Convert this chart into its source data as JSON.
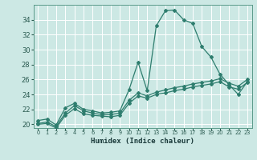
{
  "xlabel": "Humidex (Indice chaleur)",
  "x_values": [
    0,
    1,
    2,
    3,
    4,
    5,
    6,
    7,
    8,
    9,
    10,
    11,
    12,
    13,
    14,
    15,
    16,
    17,
    18,
    19,
    20,
    21,
    22,
    23
  ],
  "line1": [
    20.5,
    20.7,
    19.9,
    22.2,
    22.8,
    22.0,
    21.8,
    21.5,
    21.6,
    21.8,
    24.6,
    28.3,
    24.5,
    33.2,
    35.2,
    35.3,
    34.0,
    33.5,
    30.4,
    29.0,
    26.7,
    25.3,
    24.0,
    25.7
  ],
  "line2": [
    20.1,
    20.3,
    19.7,
    21.5,
    22.5,
    21.8,
    21.5,
    21.3,
    21.3,
    21.5,
    23.2,
    24.2,
    23.8,
    24.3,
    24.6,
    24.9,
    25.1,
    25.4,
    25.6,
    25.8,
    26.1,
    25.5,
    25.1,
    26.0
  ],
  "line3": [
    20.0,
    20.1,
    19.5,
    21.2,
    22.1,
    21.4,
    21.2,
    21.1,
    21.0,
    21.2,
    22.8,
    23.8,
    23.5,
    24.0,
    24.2,
    24.5,
    24.7,
    25.0,
    25.2,
    25.4,
    25.7,
    25.0,
    24.7,
    25.6
  ],
  "line_color": "#2e7d6e",
  "bg_color": "#cce8e4",
  "grid_color": "#b0d8d4",
  "ylim": [
    19.5,
    36.0
  ],
  "yticks": [
    20,
    22,
    24,
    26,
    28,
    30,
    32,
    34
  ],
  "xlim": [
    -0.5,
    23.5
  ],
  "marker": "D",
  "markersize": 2.0
}
